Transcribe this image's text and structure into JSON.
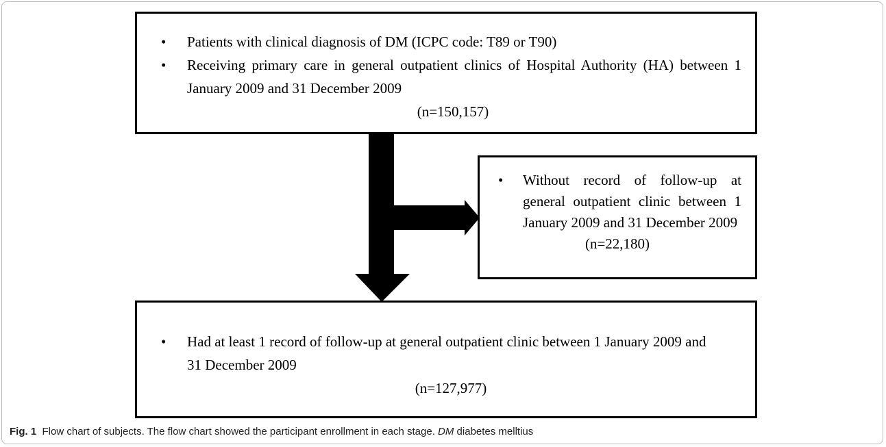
{
  "boxes": [
    {
      "bullets": [
        "Patients with clinical diagnosis of DM (ICPC code: T89 or T90)",
        "Receiving primary care in general outpatient clinics of Hospital Authority (HA) between 1 January 2009 and 31 December 2009"
      ],
      "count": "(n=150,157)"
    },
    {
      "bullets": [
        "Without record of follow-up at general outpatient clinic between 1 January 2009 and 31 December 2009"
      ],
      "count": "(n=22,180)"
    },
    {
      "bullets": [
        "Had at least 1 record of follow-up at general outpatient clinic  between 1 January 2009 and 31 December 2009"
      ],
      "count": "(n=127,977)"
    }
  ],
  "caption": {
    "label": "Fig. 1",
    "text": "Flow chart of subjects. The flow chart showed the participant enrollment in each stage.",
    "abbr": "DM",
    "abbr_text": "diabetes melltius"
  }
}
